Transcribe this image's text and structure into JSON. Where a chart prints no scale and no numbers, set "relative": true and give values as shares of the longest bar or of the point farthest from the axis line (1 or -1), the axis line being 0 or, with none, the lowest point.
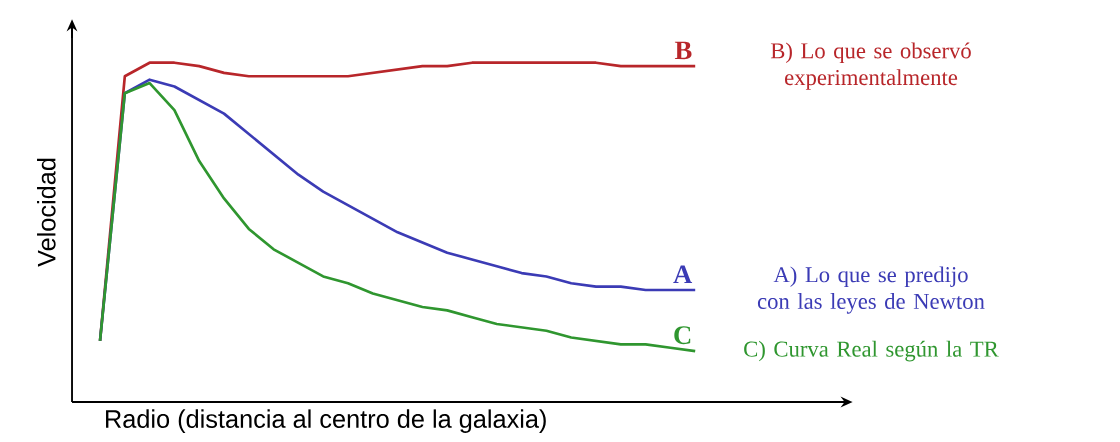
{
  "chart_data": {
    "type": "line",
    "relative": true,
    "xlabel": "Radio (distancia al centro de la galaxia)",
    "ylabel": "Velocidad",
    "categories": [
      null,
      null,
      null,
      null,
      null,
      null,
      null,
      null,
      null,
      null,
      null,
      null,
      null,
      null,
      null,
      null,
      null,
      null,
      null,
      null,
      null,
      null,
      null,
      null,
      null
    ],
    "series": [
      {
        "name": "B",
        "color": "#b8262a",
        "values": [
          0.18,
          0.96,
          1.0,
          1.0,
          0.99,
          0.97,
          0.96,
          0.96,
          0.96,
          0.96,
          0.96,
          0.97,
          0.98,
          0.99,
          0.99,
          1.0,
          1.0,
          1.0,
          1.0,
          1.0,
          1.0,
          0.99,
          0.99,
          0.99,
          0.99
        ]
      },
      {
        "name": "A",
        "color": "#3b3bb5",
        "values": [
          0.18,
          0.91,
          0.95,
          0.93,
          0.89,
          0.85,
          0.79,
          0.73,
          0.67,
          0.62,
          0.58,
          0.54,
          0.5,
          0.47,
          0.44,
          0.42,
          0.4,
          0.38,
          0.37,
          0.35,
          0.34,
          0.34,
          0.33,
          0.33,
          0.33
        ]
      },
      {
        "name": "C",
        "color": "#2f962f",
        "values": [
          0.18,
          0.91,
          0.94,
          0.86,
          0.71,
          0.6,
          0.51,
          0.45,
          0.41,
          0.37,
          0.35,
          0.32,
          0.3,
          0.28,
          0.27,
          0.25,
          0.23,
          0.22,
          0.21,
          0.19,
          0.18,
          0.17,
          0.17,
          0.16,
          0.15
        ]
      }
    ],
    "annotations": [
      "B) Lo que se observó experimentalmente",
      "A) Lo que se predijo con las leyes de Newton",
      "C) Curva Real según la TR"
    ]
  }
}
